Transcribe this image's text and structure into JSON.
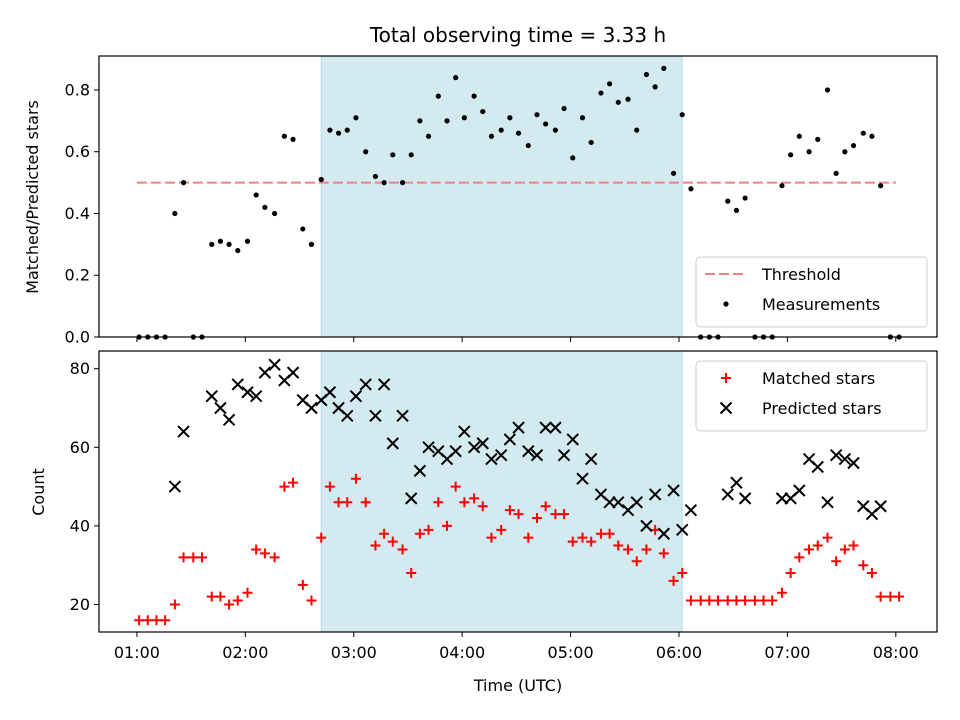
{
  "chart_data": {
    "title": "Total observing time = 3.33 h",
    "xlabel": "Time (UTC)",
    "x_ticks": [
      "01:00",
      "02:00",
      "03:00",
      "04:00",
      "05:00",
      "06:00",
      "07:00",
      "08:00"
    ],
    "x_range_hours": [
      0.65,
      8.38
    ],
    "highlight_span_hours": [
      2.7,
      6.03
    ],
    "highlight_color": "#d4eaf1",
    "panels": [
      {
        "type": "scatter",
        "ylabel": "Matched/Predicted stars",
        "ylim": [
          0,
          0.91
        ],
        "yticks": [
          "0.0",
          "0.2",
          "0.4",
          "0.6",
          "0.8"
        ],
        "threshold": {
          "name": "Threshold",
          "value": 0.5,
          "x_range_hours": [
            1.0,
            8.0
          ],
          "color": "#f08080"
        },
        "series": [
          {
            "name": "Measurements",
            "color": "#000000",
            "marker": "dot",
            "points": [
              [
                1.02,
                0
              ],
              [
                1.1,
                0
              ],
              [
                1.18,
                0
              ],
              [
                1.26,
                0
              ],
              [
                1.35,
                0.4
              ],
              [
                1.43,
                0.5
              ],
              [
                1.52,
                0
              ],
              [
                1.6,
                0
              ],
              [
                1.69,
                0.3
              ],
              [
                1.77,
                0.31
              ],
              [
                1.85,
                0.3
              ],
              [
                1.93,
                0.28
              ],
              [
                2.02,
                0.31
              ],
              [
                2.1,
                0.46
              ],
              [
                2.18,
                0.42
              ],
              [
                2.27,
                0.4
              ],
              [
                2.36,
                0.65
              ],
              [
                2.44,
                0.64
              ],
              [
                2.53,
                0.35
              ],
              [
                2.61,
                0.3
              ],
              [
                2.7,
                0.51
              ],
              [
                2.78,
                0.67
              ],
              [
                2.86,
                0.66
              ],
              [
                2.94,
                0.67
              ],
              [
                3.02,
                0.71
              ],
              [
                3.11,
                0.6
              ],
              [
                3.2,
                0.52
              ],
              [
                3.28,
                0.5
              ],
              [
                3.36,
                0.59
              ],
              [
                3.45,
                0.5
              ],
              [
                3.53,
                0.59
              ],
              [
                3.61,
                0.7
              ],
              [
                3.69,
                0.65
              ],
              [
                3.78,
                0.78
              ],
              [
                3.86,
                0.7
              ],
              [
                3.94,
                0.84
              ],
              [
                4.02,
                0.71
              ],
              [
                4.11,
                0.78
              ],
              [
                4.19,
                0.73
              ],
              [
                4.27,
                0.65
              ],
              [
                4.36,
                0.67
              ],
              [
                4.44,
                0.71
              ],
              [
                4.52,
                0.66
              ],
              [
                4.61,
                0.62
              ],
              [
                4.69,
                0.72
              ],
              [
                4.77,
                0.69
              ],
              [
                4.86,
                0.67
              ],
              [
                4.94,
                0.74
              ],
              [
                5.02,
                0.58
              ],
              [
                5.11,
                0.71
              ],
              [
                5.19,
                0.63
              ],
              [
                5.28,
                0.79
              ],
              [
                5.36,
                0.82
              ],
              [
                5.44,
                0.76
              ],
              [
                5.53,
                0.77
              ],
              [
                5.61,
                0.67
              ],
              [
                5.7,
                0.85
              ],
              [
                5.78,
                0.81
              ],
              [
                5.86,
                0.87
              ],
              [
                5.95,
                0.53
              ],
              [
                6.03,
                0.72
              ],
              [
                6.11,
                0.48
              ],
              [
                6.2,
                0
              ],
              [
                6.28,
                0
              ],
              [
                6.36,
                0
              ],
              [
                6.45,
                0.44
              ],
              [
                6.53,
                0.41
              ],
              [
                6.61,
                0.45
              ],
              [
                6.7,
                0
              ],
              [
                6.78,
                0
              ],
              [
                6.86,
                0
              ],
              [
                6.95,
                0.49
              ],
              [
                7.03,
                0.59
              ],
              [
                7.11,
                0.65
              ],
              [
                7.2,
                0.6
              ],
              [
                7.28,
                0.64
              ],
              [
                7.37,
                0.8
              ],
              [
                7.45,
                0.53
              ],
              [
                7.53,
                0.6
              ],
              [
                7.61,
                0.62
              ],
              [
                7.7,
                0.66
              ],
              [
                7.78,
                0.65
              ],
              [
                7.86,
                0.49
              ],
              [
                7.95,
                0
              ],
              [
                8.03,
                0
              ]
            ]
          }
        ],
        "legend": {
          "placement": "lower-right",
          "entries": [
            "Threshold",
            "Measurements"
          ]
        }
      },
      {
        "type": "scatter",
        "ylabel": "Count",
        "ylim": [
          13,
          84.5
        ],
        "yticks": [
          "20",
          "40",
          "60",
          "80"
        ],
        "series": [
          {
            "name": "Matched stars",
            "color": "#ff0000",
            "marker": "plus",
            "points": [
              [
                1.02,
                16
              ],
              [
                1.1,
                16
              ],
              [
                1.18,
                16
              ],
              [
                1.26,
                16
              ],
              [
                1.35,
                20
              ],
              [
                1.43,
                32
              ],
              [
                1.52,
                32
              ],
              [
                1.6,
                32
              ],
              [
                1.69,
                22
              ],
              [
                1.77,
                22
              ],
              [
                1.85,
                20
              ],
              [
                1.93,
                21
              ],
              [
                2.02,
                23
              ],
              [
                2.1,
                34
              ],
              [
                2.18,
                33
              ],
              [
                2.27,
                32
              ],
              [
                2.36,
                50
              ],
              [
                2.44,
                51
              ],
              [
                2.53,
                25
              ],
              [
                2.61,
                21
              ],
              [
                2.7,
                37
              ],
              [
                2.78,
                50
              ],
              [
                2.86,
                46
              ],
              [
                2.94,
                46
              ],
              [
                3.02,
                52
              ],
              [
                3.11,
                46
              ],
              [
                3.2,
                35
              ],
              [
                3.28,
                38
              ],
              [
                3.36,
                36
              ],
              [
                3.45,
                34
              ],
              [
                3.53,
                28
              ],
              [
                3.61,
                38
              ],
              [
                3.69,
                39
              ],
              [
                3.78,
                46
              ],
              [
                3.86,
                40
              ],
              [
                3.94,
                50
              ],
              [
                4.02,
                46
              ],
              [
                4.11,
                47
              ],
              [
                4.19,
                45
              ],
              [
                4.27,
                37
              ],
              [
                4.36,
                39
              ],
              [
                4.44,
                44
              ],
              [
                4.52,
                43
              ],
              [
                4.61,
                37
              ],
              [
                4.69,
                42
              ],
              [
                4.77,
                45
              ],
              [
                4.86,
                43
              ],
              [
                4.94,
                43
              ],
              [
                5.02,
                36
              ],
              [
                5.11,
                37
              ],
              [
                5.19,
                36
              ],
              [
                5.28,
                38
              ],
              [
                5.36,
                38
              ],
              [
                5.44,
                35
              ],
              [
                5.53,
                34
              ],
              [
                5.61,
                31
              ],
              [
                5.7,
                34
              ],
              [
                5.78,
                39
              ],
              [
                5.86,
                33
              ],
              [
                5.95,
                26
              ],
              [
                6.03,
                28
              ],
              [
                6.11,
                21
              ],
              [
                6.2,
                21
              ],
              [
                6.28,
                21
              ],
              [
                6.36,
                21
              ],
              [
                6.45,
                21
              ],
              [
                6.53,
                21
              ],
              [
                6.61,
                21
              ],
              [
                6.7,
                21
              ],
              [
                6.78,
                21
              ],
              [
                6.86,
                21
              ],
              [
                6.95,
                23
              ],
              [
                7.03,
                28
              ],
              [
                7.11,
                32
              ],
              [
                7.2,
                34
              ],
              [
                7.28,
                35
              ],
              [
                7.37,
                37
              ],
              [
                7.45,
                31
              ],
              [
                7.53,
                34
              ],
              [
                7.61,
                35
              ],
              [
                7.7,
                30
              ],
              [
                7.78,
                28
              ],
              [
                7.86,
                22
              ],
              [
                7.95,
                22
              ],
              [
                8.03,
                22
              ]
            ]
          },
          {
            "name": "Predicted stars",
            "color": "#000000",
            "marker": "cross",
            "points": [
              [
                1.35,
                50
              ],
              [
                1.43,
                64
              ],
              [
                1.69,
                73
              ],
              [
                1.77,
                70
              ],
              [
                1.85,
                67
              ],
              [
                1.93,
                76
              ],
              [
                2.02,
                74
              ],
              [
                2.1,
                73
              ],
              [
                2.18,
                79
              ],
              [
                2.27,
                81
              ],
              [
                2.36,
                77
              ],
              [
                2.44,
                79
              ],
              [
                2.53,
                72
              ],
              [
                2.61,
                70
              ],
              [
                2.7,
                72
              ],
              [
                2.78,
                74
              ],
              [
                2.86,
                70
              ],
              [
                2.94,
                68
              ],
              [
                3.02,
                73
              ],
              [
                3.11,
                76
              ],
              [
                3.2,
                68
              ],
              [
                3.28,
                76
              ],
              [
                3.36,
                61
              ],
              [
                3.45,
                68
              ],
              [
                3.53,
                47
              ],
              [
                3.61,
                54
              ],
              [
                3.69,
                60
              ],
              [
                3.78,
                59
              ],
              [
                3.86,
                57
              ],
              [
                3.94,
                59
              ],
              [
                4.02,
                64
              ],
              [
                4.11,
                60
              ],
              [
                4.19,
                61
              ],
              [
                4.27,
                57
              ],
              [
                4.36,
                58
              ],
              [
                4.44,
                62
              ],
              [
                4.52,
                65
              ],
              [
                4.61,
                59
              ],
              [
                4.69,
                58
              ],
              [
                4.77,
                65
              ],
              [
                4.86,
                65
              ],
              [
                4.94,
                58
              ],
              [
                5.02,
                62
              ],
              [
                5.11,
                52
              ],
              [
                5.19,
                57
              ],
              [
                5.28,
                48
              ],
              [
                5.36,
                46
              ],
              [
                5.44,
                46
              ],
              [
                5.53,
                44
              ],
              [
                5.61,
                46
              ],
              [
                5.7,
                40
              ],
              [
                5.78,
                48
              ],
              [
                5.86,
                38
              ],
              [
                5.95,
                49
              ],
              [
                6.03,
                39
              ],
              [
                6.11,
                44
              ],
              [
                6.45,
                48
              ],
              [
                6.53,
                51
              ],
              [
                6.61,
                47
              ],
              [
                6.95,
                47
              ],
              [
                7.03,
                47
              ],
              [
                7.11,
                49
              ],
              [
                7.2,
                57
              ],
              [
                7.28,
                55
              ],
              [
                7.37,
                46
              ],
              [
                7.45,
                58
              ],
              [
                7.53,
                57
              ],
              [
                7.61,
                56
              ],
              [
                7.7,
                45
              ],
              [
                7.78,
                43
              ],
              [
                7.86,
                45
              ]
            ]
          }
        ],
        "legend": {
          "placement": "upper-right",
          "entries": [
            "Matched stars",
            "Predicted stars"
          ]
        }
      }
    ]
  }
}
